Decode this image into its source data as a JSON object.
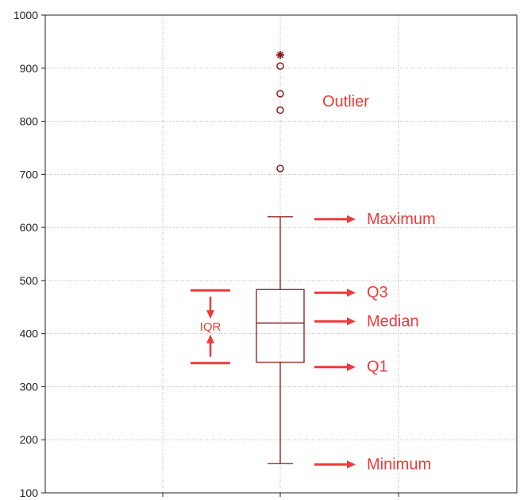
{
  "chart_data": {
    "type": "box",
    "ylim": [
      100,
      1000
    ],
    "y_ticks": [
      100,
      200,
      300,
      400,
      500,
      600,
      700,
      800,
      900,
      1000
    ],
    "grid": true,
    "box": {
      "minimum": 155,
      "q1": 346,
      "median": 420,
      "q3": 483,
      "maximum": 620,
      "outliers": [
        711,
        821,
        852,
        904
      ],
      "extremes": [
        925
      ]
    },
    "annotations": {
      "outlier": "Outlier",
      "maximum": "Maximum",
      "q3": "Q3",
      "median": "Median",
      "q1": "Q1",
      "minimum": "Minimum",
      "iqr": "IQR"
    }
  },
  "colors": {
    "box": "#8b1a1a",
    "annotation": "#ee3b3b",
    "grid": "#b5b5b5",
    "axis": "#222222"
  }
}
